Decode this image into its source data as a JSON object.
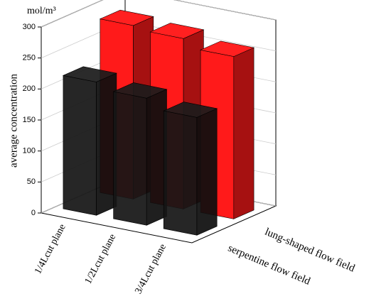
{
  "chart_data": {
    "type": "bar3d",
    "y_label": "average concentration",
    "unit": "mol/m³",
    "categories": [
      "1/4Lcut plane",
      "1/2Lcut plane",
      "3/4Lcut plane"
    ],
    "series": [
      {
        "name": "serpentine flow field",
        "color": "#151515",
        "values": [
          215,
          205,
          190
        ]
      },
      {
        "name": "lung-shaped flow field",
        "color": "#ff1a1a",
        "values": [
          280,
          275,
          262
        ]
      }
    ],
    "ylim": [
      0,
      300
    ],
    "yticks": [
      0,
      50,
      100,
      150,
      200,
      250,
      300
    ],
    "grid": true
  }
}
